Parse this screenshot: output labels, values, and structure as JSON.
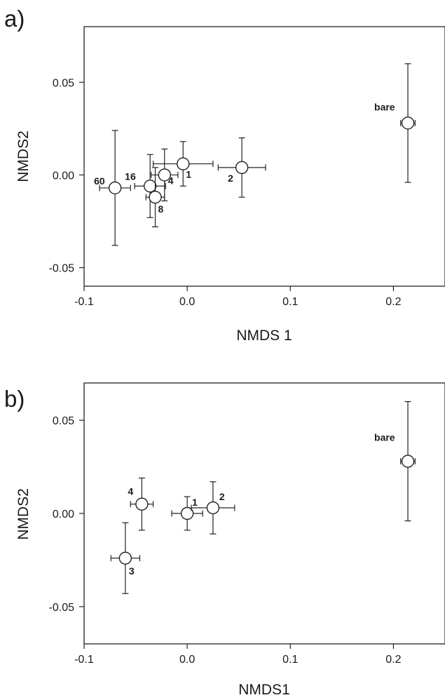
{
  "chart_data": [
    {
      "panel": "a)",
      "type": "scatter",
      "xlabel": "NMDS 1",
      "ylabel": "NMDS2",
      "xlim": [
        -0.1,
        0.25
      ],
      "ylim": [
        -0.06,
        0.08
      ],
      "xticks": [
        -0.1,
        0.0,
        0.1,
        0.2
      ],
      "xtick_labels": [
        "-0.1",
        "0.0",
        "0.1",
        "0.2"
      ],
      "yticks": [
        -0.05,
        0.0,
        0.05
      ],
      "ytick_labels": [
        "-0.05",
        "0.00",
        "0.05"
      ],
      "grid": false,
      "points": [
        {
          "label": "60",
          "x": -0.07,
          "y": -0.007,
          "xerr": 0.015,
          "yerr": 0.031
        },
        {
          "label": "16",
          "x": -0.036,
          "y": -0.006,
          "xerr": 0.015,
          "yerr": 0.017
        },
        {
          "label": "4",
          "x": -0.022,
          "y": 0.0,
          "xerr": 0.013,
          "yerr": 0.014
        },
        {
          "label": "8",
          "x": -0.031,
          "y": -0.012,
          "xerr": 0.009,
          "yerr": 0.016
        },
        {
          "label": "1",
          "x": -0.004,
          "y": 0.006,
          "xerr": 0.029,
          "yerr": 0.012
        },
        {
          "label": "2",
          "x": 0.053,
          "y": 0.004,
          "xerr": 0.023,
          "yerr": 0.016
        },
        {
          "label": "bare",
          "x": 0.214,
          "y": 0.028,
          "xerr": 0.007,
          "yerr": 0.032
        }
      ]
    },
    {
      "panel": "b)",
      "type": "scatter",
      "xlabel": "NMDS1",
      "ylabel": "NMDS2",
      "xlim": [
        -0.1,
        0.25
      ],
      "ylim": [
        -0.07,
        0.07
      ],
      "xticks": [
        -0.1,
        0.0,
        0.1,
        0.2
      ],
      "xtick_labels": [
        "-0.1",
        "0.0",
        "0.1",
        "0.2"
      ],
      "yticks": [
        -0.05,
        0.0,
        0.05
      ],
      "ytick_labels": [
        "-0.05",
        "0.00",
        "0.05"
      ],
      "grid": false,
      "points": [
        {
          "label": "3",
          "x": -0.06,
          "y": -0.024,
          "xerr": 0.014,
          "yerr": 0.019
        },
        {
          "label": "4",
          "x": -0.044,
          "y": 0.005,
          "xerr": 0.011,
          "yerr": 0.014
        },
        {
          "label": "1",
          "x": 0.0,
          "y": 0.0,
          "xerr": 0.015,
          "yerr": 0.009
        },
        {
          "label": "2",
          "x": 0.025,
          "y": 0.003,
          "xerr": 0.021,
          "yerr": 0.014
        },
        {
          "label": "bare",
          "x": 0.214,
          "y": 0.028,
          "xerr": 0.007,
          "yerr": 0.032
        }
      ]
    }
  ]
}
